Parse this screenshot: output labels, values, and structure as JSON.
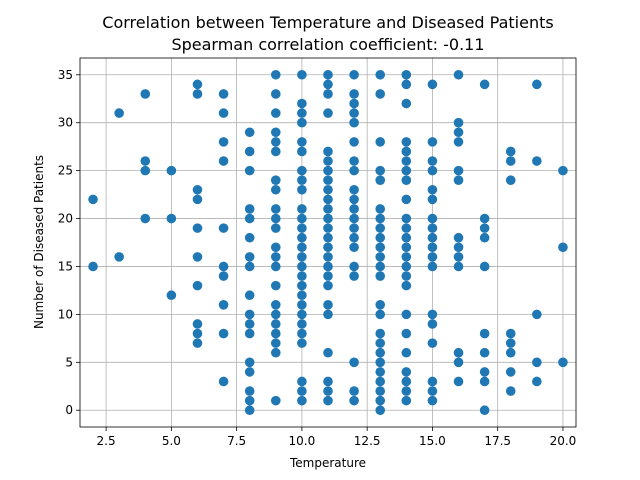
{
  "chart_data": {
    "type": "scatter",
    "title": "Correlation between Temperature and Diseased Patients",
    "subtitle": "Spearman correlation coefficient: -0.11",
    "xlabel": "Temperature",
    "ylabel": "Number of Diseased Patients",
    "xlim": [
      1.5,
      20.5
    ],
    "ylim": [
      -1.75,
      36.75
    ],
    "xticks": [
      2.5,
      5.0,
      7.5,
      10.0,
      12.5,
      15.0,
      17.5,
      20.0
    ],
    "xtick_labels": [
      "2.5",
      "5.0",
      "7.5",
      "10.0",
      "12.5",
      "15.0",
      "17.5",
      "20.0"
    ],
    "yticks": [
      0,
      5,
      10,
      15,
      20,
      25,
      30,
      35
    ],
    "ytick_labels": [
      "0",
      "5",
      "10",
      "15",
      "20",
      "25",
      "30",
      "35"
    ],
    "grid": true,
    "marker_color": "#1f77b4",
    "points": [
      [
        2,
        22
      ],
      [
        2,
        15
      ],
      [
        3,
        31
      ],
      [
        3,
        16
      ],
      [
        4,
        33
      ],
      [
        4,
        26
      ],
      [
        4,
        25
      ],
      [
        4,
        20
      ],
      [
        5,
        25
      ],
      [
        5,
        20
      ],
      [
        5,
        12
      ],
      [
        6,
        34
      ],
      [
        6,
        33
      ],
      [
        6,
        23
      ],
      [
        6,
        22
      ],
      [
        6,
        19
      ],
      [
        6,
        16
      ],
      [
        6,
        13
      ],
      [
        6,
        9
      ],
      [
        6,
        8
      ],
      [
        6,
        7
      ],
      [
        7,
        33
      ],
      [
        7,
        31
      ],
      [
        7,
        28
      ],
      [
        7,
        26
      ],
      [
        7,
        19
      ],
      [
        7,
        15
      ],
      [
        7,
        14
      ],
      [
        7,
        11
      ],
      [
        7,
        8
      ],
      [
        7,
        3
      ],
      [
        8,
        29
      ],
      [
        8,
        27
      ],
      [
        8,
        25
      ],
      [
        8,
        21
      ],
      [
        8,
        20
      ],
      [
        8,
        18
      ],
      [
        8,
        16
      ],
      [
        8,
        15
      ],
      [
        8,
        12
      ],
      [
        8,
        10
      ],
      [
        8,
        9
      ],
      [
        8,
        8
      ],
      [
        8,
        5
      ],
      [
        8,
        4
      ],
      [
        8,
        2
      ],
      [
        8,
        1
      ],
      [
        8,
        0
      ],
      [
        9,
        35
      ],
      [
        9,
        33
      ],
      [
        9,
        31
      ],
      [
        9,
        29
      ],
      [
        9,
        28
      ],
      [
        9,
        27
      ],
      [
        9,
        24
      ],
      [
        9,
        23
      ],
      [
        9,
        21
      ],
      [
        9,
        20
      ],
      [
        9,
        19
      ],
      [
        9,
        17
      ],
      [
        9,
        16
      ],
      [
        9,
        15
      ],
      [
        9,
        13
      ],
      [
        9,
        11
      ],
      [
        9,
        10
      ],
      [
        9,
        9
      ],
      [
        9,
        8
      ],
      [
        9,
        7
      ],
      [
        9,
        6
      ],
      [
        9,
        1
      ],
      [
        10,
        35
      ],
      [
        10,
        32
      ],
      [
        10,
        31
      ],
      [
        10,
        30
      ],
      [
        10,
        28
      ],
      [
        10,
        27
      ],
      [
        10,
        25
      ],
      [
        10,
        24
      ],
      [
        10,
        23
      ],
      [
        10,
        21
      ],
      [
        10,
        20
      ],
      [
        10,
        19
      ],
      [
        10,
        18
      ],
      [
        10,
        17
      ],
      [
        10,
        16
      ],
      [
        10,
        15
      ],
      [
        10,
        14
      ],
      [
        10,
        13
      ],
      [
        10,
        12
      ],
      [
        10,
        11
      ],
      [
        10,
        10
      ],
      [
        10,
        9
      ],
      [
        10,
        8
      ],
      [
        10,
        7
      ],
      [
        10,
        3
      ],
      [
        10,
        2
      ],
      [
        10,
        1
      ],
      [
        11,
        35
      ],
      [
        11,
        34
      ],
      [
        11,
        33
      ],
      [
        11,
        31
      ],
      [
        11,
        27
      ],
      [
        11,
        26
      ],
      [
        11,
        25
      ],
      [
        11,
        24
      ],
      [
        11,
        23
      ],
      [
        11,
        22
      ],
      [
        11,
        21
      ],
      [
        11,
        20
      ],
      [
        11,
        19
      ],
      [
        11,
        18
      ],
      [
        11,
        17
      ],
      [
        11,
        16
      ],
      [
        11,
        15
      ],
      [
        11,
        14
      ],
      [
        11,
        13
      ],
      [
        11,
        11
      ],
      [
        11,
        10
      ],
      [
        11,
        6
      ],
      [
        11,
        3
      ],
      [
        11,
        2
      ],
      [
        11,
        1
      ],
      [
        12,
        35
      ],
      [
        12,
        33
      ],
      [
        12,
        32
      ],
      [
        12,
        31
      ],
      [
        12,
        30
      ],
      [
        12,
        28
      ],
      [
        12,
        26
      ],
      [
        12,
        25
      ],
      [
        12,
        23
      ],
      [
        12,
        22
      ],
      [
        12,
        21
      ],
      [
        12,
        20
      ],
      [
        12,
        19
      ],
      [
        12,
        18
      ],
      [
        12,
        17
      ],
      [
        12,
        15
      ],
      [
        12,
        14
      ],
      [
        12,
        5
      ],
      [
        12,
        2
      ],
      [
        12,
        1
      ],
      [
        13,
        35
      ],
      [
        13,
        33
      ],
      [
        13,
        28
      ],
      [
        13,
        25
      ],
      [
        13,
        24
      ],
      [
        13,
        21
      ],
      [
        13,
        20
      ],
      [
        13,
        19
      ],
      [
        13,
        18
      ],
      [
        13,
        17
      ],
      [
        13,
        16
      ],
      [
        13,
        15
      ],
      [
        13,
        14
      ],
      [
        13,
        11
      ],
      [
        13,
        10
      ],
      [
        13,
        8
      ],
      [
        13,
        7
      ],
      [
        13,
        6
      ],
      [
        13,
        5
      ],
      [
        13,
        4
      ],
      [
        13,
        3
      ],
      [
        13,
        2
      ],
      [
        13,
        1
      ],
      [
        13,
        0
      ],
      [
        14,
        35
      ],
      [
        14,
        34
      ],
      [
        14,
        32
      ],
      [
        14,
        28
      ],
      [
        14,
        27
      ],
      [
        14,
        26
      ],
      [
        14,
        25
      ],
      [
        14,
        24
      ],
      [
        14,
        22
      ],
      [
        14,
        20
      ],
      [
        14,
        19
      ],
      [
        14,
        18
      ],
      [
        14,
        17
      ],
      [
        14,
        16
      ],
      [
        14,
        15
      ],
      [
        14,
        14
      ],
      [
        14,
        13
      ],
      [
        14,
        10
      ],
      [
        14,
        8
      ],
      [
        14,
        6
      ],
      [
        14,
        4
      ],
      [
        14,
        3
      ],
      [
        14,
        2
      ],
      [
        14,
        1
      ],
      [
        15,
        34
      ],
      [
        15,
        28
      ],
      [
        15,
        26
      ],
      [
        15,
        25
      ],
      [
        15,
        23
      ],
      [
        15,
        22
      ],
      [
        15,
        20
      ],
      [
        15,
        19
      ],
      [
        15,
        18
      ],
      [
        15,
        17
      ],
      [
        15,
        16
      ],
      [
        15,
        15
      ],
      [
        15,
        10
      ],
      [
        15,
        9
      ],
      [
        15,
        7
      ],
      [
        15,
        3
      ],
      [
        15,
        2
      ],
      [
        15,
        1
      ],
      [
        16,
        35
      ],
      [
        16,
        30
      ],
      [
        16,
        29
      ],
      [
        16,
        28
      ],
      [
        16,
        25
      ],
      [
        16,
        24
      ],
      [
        16,
        18
      ],
      [
        16,
        17
      ],
      [
        16,
        16
      ],
      [
        16,
        15
      ],
      [
        16,
        6
      ],
      [
        16,
        5
      ],
      [
        16,
        3
      ],
      [
        17,
        34
      ],
      [
        17,
        20
      ],
      [
        17,
        19
      ],
      [
        17,
        18
      ],
      [
        17,
        15
      ],
      [
        17,
        8
      ],
      [
        17,
        6
      ],
      [
        17,
        4
      ],
      [
        17,
        3
      ],
      [
        17,
        0
      ],
      [
        18,
        27
      ],
      [
        18,
        26
      ],
      [
        18,
        24
      ],
      [
        18,
        8
      ],
      [
        18,
        7
      ],
      [
        18,
        6
      ],
      [
        18,
        4
      ],
      [
        18,
        2
      ],
      [
        19,
        34
      ],
      [
        19,
        26
      ],
      [
        19,
        10
      ],
      [
        19,
        5
      ],
      [
        19,
        3
      ],
      [
        20,
        25
      ],
      [
        20,
        17
      ],
      [
        20,
        5
      ]
    ]
  }
}
